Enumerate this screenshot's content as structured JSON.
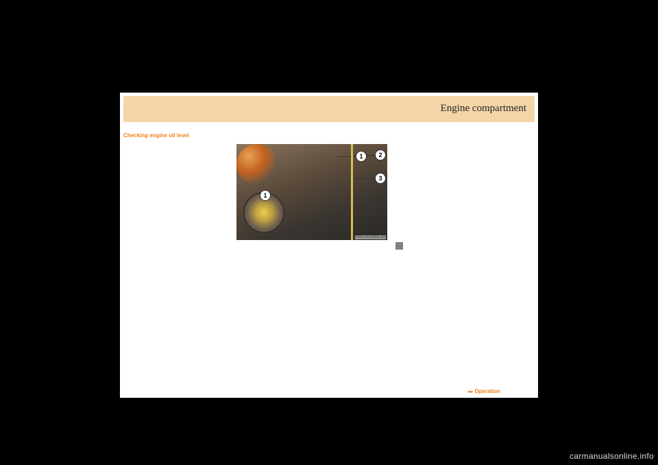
{
  "header": {
    "title": "Engine compartment",
    "background_color": "#f4d5a8"
  },
  "section": {
    "title": "Checking engine oil level",
    "title_color": "#ef7f1a"
  },
  "figure": {
    "callouts": {
      "inset": "1",
      "c1": "1",
      "c2": "2",
      "c3": "3"
    },
    "image_code": "P01.00-2351-31"
  },
  "footer": {
    "link_label": "Operation",
    "link_color": "#ef7f1a"
  },
  "watermark": {
    "text": "carmanualsonline.info",
    "color": "#dcdcdc"
  },
  "colors": {
    "page_background": "#000000",
    "content_background": "#ffffff"
  }
}
